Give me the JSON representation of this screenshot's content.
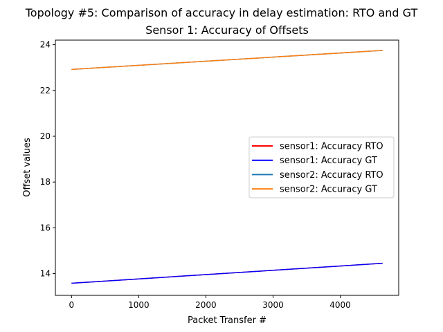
{
  "chart_data": {
    "type": "line",
    "suptitle": "Topology #5: Comparison of accuracy in delay estimation: RTO and GT",
    "title": "Sensor 1: Accuracy of Offsets",
    "xlabel": "Packet Transfer #",
    "ylabel": "Offset values",
    "xlim": [
      -240,
      4870
    ],
    "ylim": [
      13.05,
      24.2
    ],
    "xticks": [
      0,
      1000,
      2000,
      3000,
      4000
    ],
    "xtick_labels": [
      "0",
      "1000",
      "2000",
      "3000",
      "4000"
    ],
    "yticks": [
      14,
      16,
      18,
      20,
      22,
      24
    ],
    "ytick_labels": [
      "14",
      "16",
      "18",
      "20",
      "22",
      "24"
    ],
    "grid": false,
    "legend_position": "center-right",
    "series": [
      {
        "name": "sensor1: Accuracy RTO",
        "color": "#ff0000",
        "x": [
          0,
          4630
        ],
        "y": [
          13.58,
          14.45
        ]
      },
      {
        "name": "sensor1: Accuracy GT",
        "color": "#0000ff",
        "x": [
          0,
          4630
        ],
        "y": [
          13.58,
          14.45
        ]
      },
      {
        "name": "sensor2: Accuracy RTO",
        "color": "#1f77b4",
        "x": [
          0,
          4630
        ],
        "y": [
          22.92,
          23.75
        ]
      },
      {
        "name": "sensor2: Accuracy GT",
        "color": "#ff7f0e",
        "x": [
          0,
          4630
        ],
        "y": [
          22.92,
          23.75
        ]
      }
    ]
  }
}
